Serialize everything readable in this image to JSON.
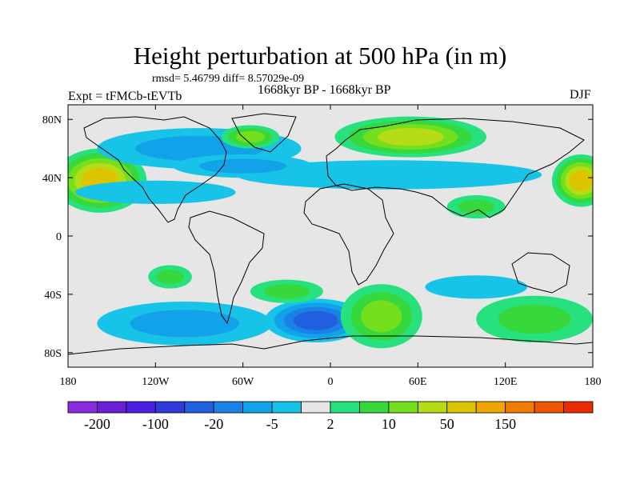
{
  "chart_data": {
    "type": "heatmap",
    "title": "Height perturbation at 500 hPa (in m)",
    "subtitle": "rmsd= 5.46799 diff= 8.57029e-09",
    "period": "1668kyr BP - 1668kyr BP",
    "left_label": "Expt = tFMCb-tEVTb",
    "right_label": "DJF",
    "x_range": [
      -180,
      180
    ],
    "y_range": [
      -90,
      90
    ],
    "x_ticks": [
      {
        "value": -180,
        "label": "180"
      },
      {
        "value": -120,
        "label": "120W"
      },
      {
        "value": -60,
        "label": "60W"
      },
      {
        "value": 0,
        "label": "0"
      },
      {
        "value": 60,
        "label": "60E"
      },
      {
        "value": 120,
        "label": "120E"
      },
      {
        "value": 180,
        "label": "180"
      }
    ],
    "y_ticks": [
      {
        "value": 80,
        "label": "80N"
      },
      {
        "value": 40,
        "label": "40N"
      },
      {
        "value": 0,
        "label": "0"
      },
      {
        "value": -40,
        "label": "40S"
      },
      {
        "value": -80,
        "label": "80S"
      }
    ],
    "colorbar": {
      "colors": [
        "#8a2be2",
        "#6a1fd6",
        "#4a1fe0",
        "#2f3ad8",
        "#1f5fe0",
        "#1a82e6",
        "#12a2ea",
        "#17c3e6",
        "#e6e6e6",
        "#27e07e",
        "#37d83c",
        "#74df1c",
        "#b5dc17",
        "#dcc400",
        "#f0a600",
        "#f07c00",
        "#ef5400",
        "#e82c00"
      ],
      "labels": [
        {
          "index": 1,
          "text": "-200"
        },
        {
          "index": 3,
          "text": "-100"
        },
        {
          "index": 5,
          "text": "-20"
        },
        {
          "index": 7,
          "text": "-5"
        },
        {
          "index": 9,
          "text": "2"
        },
        {
          "index": 11,
          "text": "10"
        },
        {
          "index": 13,
          "text": "50"
        },
        {
          "index": 15,
          "text": "150"
        }
      ]
    },
    "anomalies": [
      {
        "lon": -158,
        "lat": 38,
        "rx": 32,
        "ry": 22,
        "band": 13
      },
      {
        "lon": 55,
        "lat": 68,
        "rx": 52,
        "ry": 14,
        "band": 12
      },
      {
        "lon": 172,
        "lat": 38,
        "rx": 20,
        "ry": 18,
        "band": 13
      },
      {
        "lon": -90,
        "lat": 60,
        "rx": 70,
        "ry": 14,
        "band": 6
      },
      {
        "lon": 40,
        "lat": 42,
        "rx": 105,
        "ry": 10,
        "band": 7
      },
      {
        "lon": -60,
        "lat": 48,
        "rx": 48,
        "ry": 8,
        "band": 6
      },
      {
        "lon": -120,
        "lat": 30,
        "rx": 55,
        "ry": 8,
        "band": 7
      },
      {
        "lon": -55,
        "lat": 68,
        "rx": 20,
        "ry": 8,
        "band": 11
      },
      {
        "lon": -100,
        "lat": -60,
        "rx": 60,
        "ry": 15,
        "band": 6
      },
      {
        "lon": -10,
        "lat": -58,
        "rx": 35,
        "ry": 15,
        "band": 4
      },
      {
        "lon": 35,
        "lat": -55,
        "rx": 28,
        "ry": 22,
        "band": 11
      },
      {
        "lon": 140,
        "lat": -57,
        "rx": 40,
        "ry": 16,
        "band": 10
      },
      {
        "lon": 100,
        "lat": -35,
        "rx": 35,
        "ry": 8,
        "band": 7
      },
      {
        "lon": -30,
        "lat": -38,
        "rx": 25,
        "ry": 8,
        "band": 10
      },
      {
        "lon": -110,
        "lat": -28,
        "rx": 15,
        "ry": 8,
        "band": 10
      },
      {
        "lon": 100,
        "lat": 20,
        "rx": 20,
        "ry": 8,
        "band": 10
      }
    ]
  }
}
